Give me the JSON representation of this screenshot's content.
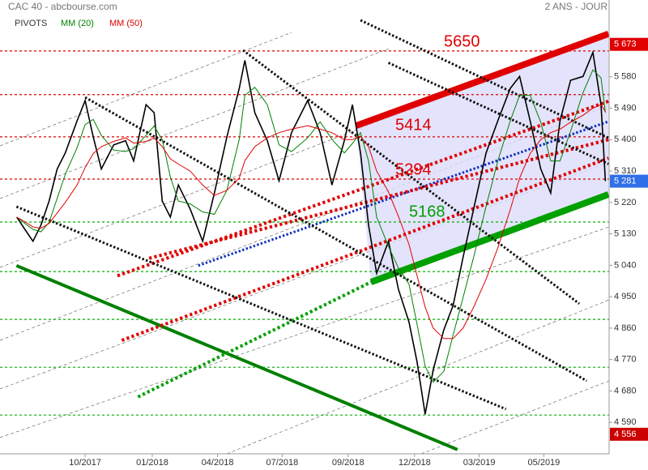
{
  "chart_data": {
    "type": "line",
    "title": "CAC 40 - abcbourse.com",
    "timeframe": "2 ANS - JOUR",
    "pivots_label": "PIVOTS",
    "xlim": [
      -2,
      96
    ],
    "ylim": [
      4500,
      5800
    ],
    "xticks": [
      {
        "value": 11.7,
        "label": "10/2017"
      },
      {
        "value": 22.5,
        "label": "01/2018"
      },
      {
        "value": 33,
        "label": "04/2018"
      },
      {
        "value": 43.4,
        "label": "07/2018"
      },
      {
        "value": 54,
        "label": "09/2018"
      },
      {
        "value": 64.7,
        "label": "12/2018"
      },
      {
        "value": 75.1,
        "label": "03/2019"
      },
      {
        "value": 85.5,
        "label": "05/2019"
      }
    ],
    "yticks": [
      {
        "value": 4590,
        "label": "4 590"
      },
      {
        "value": 4680,
        "label": "4 680"
      },
      {
        "value": 4770,
        "label": "4 770"
      },
      {
        "value": 4860,
        "label": "4 860"
      },
      {
        "value": 4950,
        "label": "4 950"
      },
      {
        "value": 5040,
        "label": "5 040"
      },
      {
        "value": 5130,
        "label": "5 130"
      },
      {
        "value": 5220,
        "label": "5 220"
      },
      {
        "value": 5310,
        "label": "5 310"
      },
      {
        "value": 5400,
        "label": "5 400"
      },
      {
        "value": 5490,
        "label": "5 490"
      },
      {
        "value": 5580,
        "label": "5 580"
      }
    ],
    "price_labels": [
      {
        "value": 5673,
        "label": "5 673",
        "color": "#e00000"
      },
      {
        "value": 5281,
        "label": "5 281",
        "color": "#2f6fe8"
      },
      {
        "value": 4556,
        "label": "4 556",
        "color": "#cc0000"
      }
    ],
    "x": [
      0.7,
      2,
      3.3,
      4.6,
      5.9,
      7.2,
      8.5,
      10.4,
      11.7,
      13,
      14.3,
      16.3,
      18.2,
      19.5,
      21.5,
      22.8,
      24.1,
      25.4,
      26.7,
      28.6,
      30.6,
      32.5,
      34.5,
      36.5,
      37.4,
      39,
      41,
      42.9,
      44.9,
      47.5,
      49.5,
      51.4,
      53.4,
      54.7,
      56,
      57.3,
      58.6,
      60.5,
      62.1,
      63.8,
      65.1,
      66.4,
      67.7,
      69.4,
      70.9,
      72.5,
      74.2,
      76.2,
      78.1,
      80.1,
      81.6,
      83.3,
      85,
      86.6,
      88.1,
      89.8,
      91.8,
      93.4,
      94.7,
      95.4
    ],
    "series": [
      {
        "color": "#000000",
        "values": [
          5178,
          5143,
          5109,
          5155,
          5224,
          5316,
          5362,
          5454,
          5512,
          5408,
          5316,
          5385,
          5397,
          5339,
          5500,
          5477,
          5224,
          5178,
          5270,
          5201,
          5109,
          5247,
          5408,
          5547,
          5627,
          5477,
          5397,
          5282,
          5420,
          5512,
          5420,
          5270,
          5397,
          5500,
          5362,
          5155,
          5017,
          5109,
          4971,
          4878,
          4763,
          4613,
          4740,
          4855,
          4925,
          5063,
          5201,
          5362,
          5454,
          5547,
          5581,
          5454,
          5316,
          5247,
          5454,
          5570,
          5581,
          5650,
          5500,
          5281
        ]
      },
      {
        "name": "MM (20)",
        "color": "#008000",
        "values": [
          5178,
          5160,
          5143,
          5136,
          5163,
          5232,
          5301,
          5377,
          5443,
          5458,
          5412,
          5370,
          5366,
          5374,
          5412,
          5439,
          5400,
          5293,
          5224,
          5216,
          5193,
          5186,
          5255,
          5401,
          5527,
          5550,
          5500,
          5385,
          5366,
          5405,
          5451,
          5401,
          5362,
          5389,
          5420,
          5339,
          5178,
          5094,
          5032,
          4986,
          4871,
          4751,
          4705,
          4736,
          4840,
          4948,
          5063,
          5209,
          5339,
          5454,
          5527,
          5527,
          5450,
          5339,
          5339,
          5424,
          5535,
          5600,
          5577,
          5477
        ]
      },
      {
        "name": "MM (50)",
        "color": "#e00000",
        "values": [
          5178,
          5165,
          5150,
          5146,
          5160,
          5190,
          5220,
          5270,
          5320,
          5360,
          5380,
          5395,
          5405,
          5390,
          5395,
          5405,
          5380,
          5345,
          5330,
          5310,
          5270,
          5240,
          5255,
          5290,
          5340,
          5380,
          5405,
          5420,
          5430,
          5440,
          5430,
          5420,
          5400,
          5400,
          5410,
          5380,
          5310,
          5250,
          5180,
          5100,
          5010,
          4920,
          4860,
          4830,
          4830,
          4860,
          4920,
          5000,
          5090,
          5200,
          5290,
          5360,
          5400,
          5420,
          5430,
          5450,
          5470,
          5490,
          5500,
          5480
        ]
      }
    ],
    "levels": [
      {
        "value": 5654,
        "color": "#e00000"
      },
      {
        "value": 5529,
        "color": "#e00000"
      },
      {
        "value": 5408,
        "color": "#e00000"
      },
      {
        "value": 5287,
        "color": "#e00000"
      },
      {
        "value": 5164,
        "color": "#00b000"
      },
      {
        "value": 5022,
        "color": "#00b000"
      },
      {
        "value": 4885,
        "color": "#00b000"
      },
      {
        "value": 4748,
        "color": "#00b000"
      },
      {
        "value": 4611,
        "color": "#00b000"
      }
    ],
    "lines": [
      {
        "color": "#e00000",
        "style": "solid",
        "width": 8,
        "from": [
          55.3,
          5440
        ],
        "to": [
          95.9,
          5703
        ]
      },
      {
        "color": "#00a000",
        "style": "solid",
        "width": 8,
        "from": [
          57.7,
          4992
        ],
        "to": [
          95.9,
          5243
        ]
      },
      {
        "color": "#1030c0",
        "style": "dotted",
        "width": 3,
        "from": [
          29.9,
          5039
        ],
        "to": [
          95.9,
          5452
        ]
      },
      {
        "color": "#008000",
        "style": "solid",
        "width": 4,
        "from": [
          0.65,
          5039
        ],
        "to": [
          71.6,
          4512
        ]
      },
      {
        "color": "#00a000",
        "style": "dotted",
        "width": 4,
        "from": [
          20.2,
          4663
        ],
        "to": [
          57.7,
          4992
        ]
      },
      {
        "color": "#e00000",
        "style": "dotted",
        "width": 4,
        "from": [
          17.6,
          4825
        ],
        "to": [
          95.9,
          5347
        ]
      },
      {
        "color": "#e00000",
        "style": "dotted",
        "width": 4,
        "from": [
          16.9,
          5010
        ],
        "to": [
          95.9,
          5510
        ]
      },
      {
        "color": "#e00000",
        "style": "dotted",
        "width": 4,
        "from": [
          22,
          5060
        ],
        "to": [
          95.9,
          5400
        ]
      },
      {
        "color": "#111111",
        "style": "dotted",
        "width": 3,
        "from": [
          37.1,
          5656
        ],
        "to": [
          91.2,
          4930
        ]
      },
      {
        "color": "#111111",
        "style": "dotted",
        "width": 3,
        "from": [
          56,
          5742
        ],
        "to": [
          95.9,
          5405
        ]
      },
      {
        "color": "#111111",
        "style": "dotted",
        "width": 3,
        "from": [
          0.65,
          5208
        ],
        "to": [
          79.4,
          4628
        ]
      },
      {
        "color": "#111111",
        "style": "dotted",
        "width": 3,
        "from": [
          11.7,
          5521
        ],
        "to": [
          92.4,
          4709
        ]
      },
      {
        "color": "#111111",
        "style": "dotted",
        "width": 3,
        "from": [
          60.5,
          5620
        ],
        "to": [
          95.9,
          5330
        ]
      }
    ],
    "annotations": [
      {
        "text": "5650",
        "color": "#e00000"
      },
      {
        "text": "5414",
        "color": "#e00000"
      },
      {
        "text": "5294",
        "color": "#e00000"
      },
      {
        "text": "5168",
        "color": "#00a000"
      }
    ]
  }
}
